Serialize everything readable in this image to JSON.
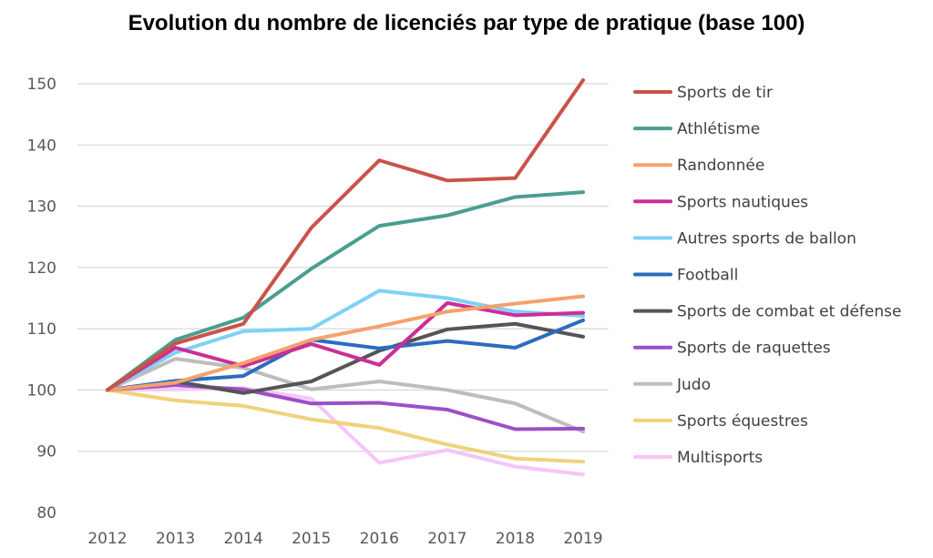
{
  "chart_data": {
    "type": "line",
    "title": "Evolution du nombre de licenciés par type de pratique (base 100)",
    "xlabel": "",
    "ylabel": "",
    "categories": [
      "2012",
      "2013",
      "2014",
      "2015",
      "2016",
      "2017",
      "2018",
      "2019"
    ],
    "ylim": [
      80,
      150
    ],
    "yticks": [
      80,
      90,
      100,
      110,
      120,
      130,
      140,
      150
    ],
    "grid": true,
    "legend_position": "right",
    "series": [
      {
        "name": "Sports de tir",
        "color": "#c9534a",
        "values": [
          100,
          107.6,
          110.8,
          126.5,
          137.5,
          134.2,
          134.6,
          150.6
        ]
      },
      {
        "name": "Athlétisme",
        "color": "#4a9e8e",
        "values": [
          100,
          108.2,
          111.8,
          119.8,
          126.8,
          128.5,
          131.5,
          132.3
        ]
      },
      {
        "name": "Randonnée",
        "color": "#f4a26b",
        "values": [
          100,
          101.2,
          104.4,
          108.2,
          110.4,
          112.8,
          114.1,
          115.3
        ]
      },
      {
        "name": "Sports nautiques",
        "color": "#cc2e96",
        "values": [
          100,
          106.9,
          103.9,
          107.5,
          104.1,
          114.2,
          112.2,
          112.6
        ]
      },
      {
        "name": "Autres sports de ballon",
        "color": "#7fd0f7",
        "values": [
          100,
          106.1,
          109.6,
          110.0,
          116.2,
          115.0,
          112.8,
          112.1
        ]
      },
      {
        "name": "Football",
        "color": "#2b6cbf",
        "values": [
          100,
          101.5,
          102.3,
          108.2,
          106.8,
          108.0,
          106.9,
          111.4
        ]
      },
      {
        "name": "Sports de combat et défense",
        "color": "#555555",
        "values": [
          100,
          101.4,
          99.5,
          101.4,
          106.4,
          109.9,
          110.8,
          108.7
        ]
      },
      {
        "name": "Sports de raquettes",
        "color": "#9b4fc8",
        "values": [
          100,
          100.8,
          100.1,
          97.8,
          97.9,
          96.8,
          93.6,
          93.7
        ]
      },
      {
        "name": "Judo",
        "color": "#bdbdbd",
        "values": [
          100,
          105.1,
          103.6,
          100.1,
          101.4,
          100.0,
          97.8,
          93.2
        ]
      },
      {
        "name": "Sports équestres",
        "color": "#f0d27a",
        "values": [
          100,
          98.3,
          97.4,
          95.2,
          93.8,
          91.1,
          88.8,
          88.3
        ]
      },
      {
        "name": "Multisports",
        "color": "#f6c6f6",
        "values": [
          100,
          100.1,
          100.3,
          98.6,
          88.1,
          90.2,
          87.5,
          86.2
        ]
      }
    ]
  }
}
